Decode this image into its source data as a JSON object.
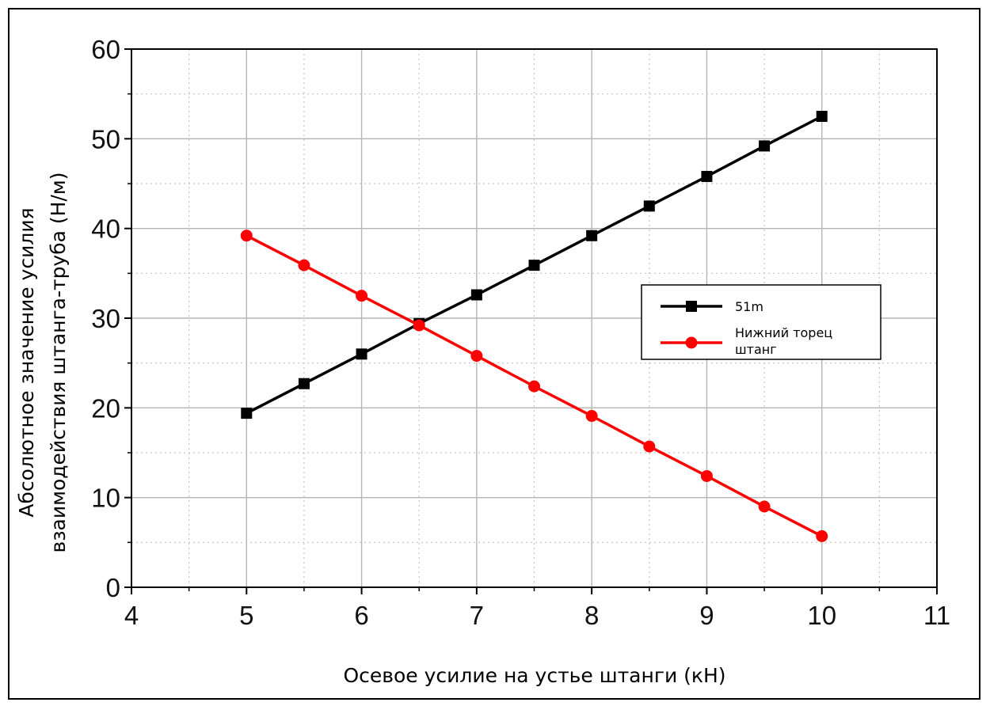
{
  "chart_data": {
    "type": "line",
    "xlabel": "Осевое усилие на устье штанги (кН)",
    "ylabel_lines": [
      "Абсолютное значение усилия",
      "взаимодействия штанга-труба (Н/м)"
    ],
    "xlim": [
      4,
      11
    ],
    "ylim": [
      0,
      60
    ],
    "x_ticks": [
      "4",
      "5",
      "6",
      "7",
      "8",
      "9",
      "10",
      "11"
    ],
    "y_ticks": [
      "0",
      "10",
      "20",
      "30",
      "40",
      "50",
      "60"
    ],
    "grid": true,
    "legend_position": "right",
    "series": [
      {
        "name": "51m",
        "color": "#000000",
        "marker": "square",
        "x": [
          5,
          5.5,
          6,
          6.5,
          7,
          7.5,
          8,
          8.5,
          9,
          9.5,
          10
        ],
        "y": [
          19.4,
          22.7,
          26.0,
          29.4,
          32.6,
          35.9,
          39.2,
          42.5,
          45.8,
          49.2,
          52.5
        ]
      },
      {
        "name_lines": [
          "Нижний торец",
          "штанг"
        ],
        "color": "#ff0000",
        "marker": "circle",
        "x": [
          5,
          5.5,
          6,
          6.5,
          7,
          7.5,
          8,
          8.5,
          9,
          9.5,
          10
        ],
        "y": [
          39.2,
          35.9,
          32.5,
          29.2,
          25.8,
          22.4,
          19.1,
          15.7,
          12.4,
          9.0,
          5.7
        ]
      }
    ]
  }
}
